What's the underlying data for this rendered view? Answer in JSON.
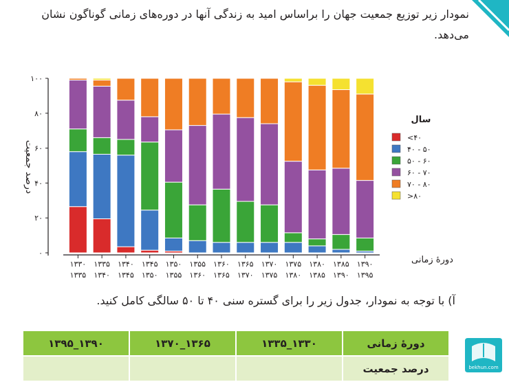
{
  "question": {
    "text": "نمودار زیر توزیع جمعیت جهان را براساس امید به زندگی آنها در دوره‌های زمانی گوناگون نشان می‌دهد."
  },
  "instruction": {
    "text": "آ) با توجه به نمودار، جدول زیر را برای گستره سنی ۴۰ تا ۵۰ سالگی کامل کنید."
  },
  "table": {
    "header_label": "دورهٔ زمانی",
    "row_label": "درصد جمعیت",
    "periods": [
      "۱۳۳۰_۱۳۳۵",
      "۱۳۶۵_۱۳۷۰",
      "۱۳۹۰_۱۳۹۵"
    ]
  },
  "logo": {
    "text": "bekhun.com"
  },
  "colors": {
    "lt40": "#d92b2b",
    "40-50": "#3e78c2",
    "50-60": "#3aa538",
    "60-70": "#9451a0",
    "70-80": "#ef7d24",
    "gt80": "#f5e130",
    "accent_green": "#8dc63f",
    "teal": "#1fb6c4"
  },
  "chart_data": {
    "type": "bar",
    "stacked": true,
    "ylabel": "درصد جمعیت",
    "xlabel": "دورهٔ زمانی",
    "ylim": [
      0,
      100
    ],
    "yticks": [
      "۰",
      "۲۰",
      "۴۰",
      "۶۰",
      "۸۰",
      "۱۰۰"
    ],
    "grid": false,
    "legend_title": "سال",
    "legend_position": "right",
    "categories": [
      [
        "۱۳۳۰",
        "۱۳۳۵"
      ],
      [
        "۱۳۳۵",
        "۱۳۴۰"
      ],
      [
        "۱۳۴۰",
        "۱۳۴۵"
      ],
      [
        "۱۳۴۵",
        "۱۳۵۰"
      ],
      [
        "۱۳۵۰",
        "۱۳۵۵"
      ],
      [
        "۱۳۵۵",
        "۱۳۶۰"
      ],
      [
        "۱۳۶۰",
        "۱۳۶۵"
      ],
      [
        "۱۳۶۵",
        "۱۳۷۰"
      ],
      [
        "۱۳۷۰",
        "۱۳۷۵"
      ],
      [
        "۱۳۷۵",
        "۱۳۸۰"
      ],
      [
        "۱۳۸۰",
        "۱۳۸۵"
      ],
      [
        "۱۳۸۵",
        "۱۳۹۰"
      ],
      [
        "۱۳۹۰",
        "۱۳۹۵"
      ]
    ],
    "series": [
      {
        "name": "<۴۰",
        "color": "#d92b2b",
        "values": [
          26.5,
          19.5,
          3.5,
          1.5,
          1,
          0,
          0,
          0,
          0,
          0,
          0,
          0,
          0
        ]
      },
      {
        "name": "۴۰ - ۵۰",
        "color": "#3e78c2",
        "values": [
          31.5,
          37,
          52.5,
          23,
          7.5,
          7,
          6,
          6,
          6,
          6,
          4,
          2,
          1
        ]
      },
      {
        "name": "۵۰ - ۶۰",
        "color": "#3aa538",
        "values": [
          13,
          9.5,
          9,
          39,
          32,
          20.5,
          30.5,
          23.5,
          21.5,
          5.5,
          4,
          8.5,
          7.5
        ]
      },
      {
        "name": "۶۰ - ۷۰",
        "color": "#9451a0",
        "values": [
          28,
          29.5,
          22.5,
          14.5,
          30,
          45.5,
          43,
          48,
          46.5,
          41,
          39.5,
          38,
          33
        ]
      },
      {
        "name": "۷۰ - ۸۰",
        "color": "#ef7d24",
        "values": [
          1,
          3.5,
          12.5,
          22,
          29.5,
          27,
          20.5,
          22.5,
          26,
          45.5,
          48.5,
          45,
          49.5
        ]
      },
      {
        "name": ">۸۰",
        "color": "#f5e130",
        "values": [
          0,
          1,
          0,
          0,
          0,
          0,
          0,
          0,
          0,
          2,
          4,
          6.5,
          9
        ]
      }
    ]
  }
}
